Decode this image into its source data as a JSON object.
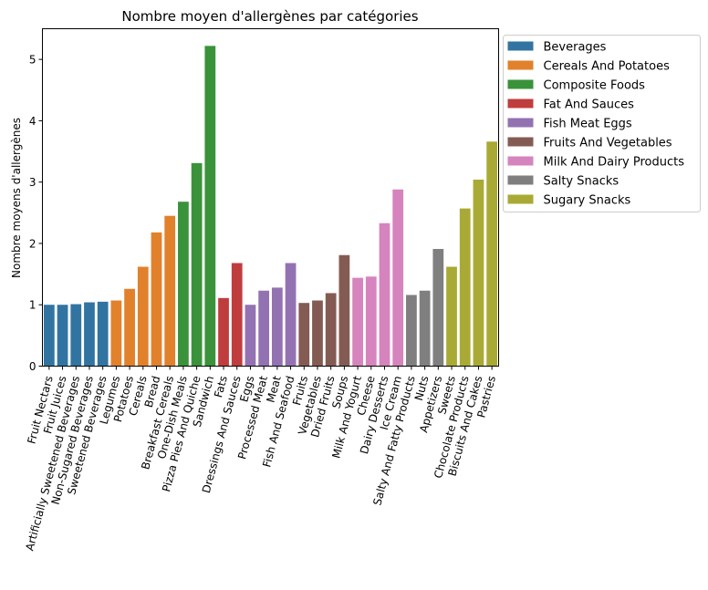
{
  "chart_data": {
    "type": "bar",
    "title": "Nombre moyen d'allergènes par catégories",
    "xlabel": "",
    "ylabel": "Nombre moyens d'allergènes",
    "ylim": [
      0,
      5.5
    ],
    "yticks": [
      0,
      1,
      2,
      3,
      4,
      5
    ],
    "grid": false,
    "legend_position": "outside-right",
    "legend": [
      {
        "name": "Beverages",
        "color": "#3274a1"
      },
      {
        "name": "Cereals And Potatoes",
        "color": "#e1812c"
      },
      {
        "name": "Composite Foods",
        "color": "#3a923a"
      },
      {
        "name": "Fat And Sauces",
        "color": "#c03d3e"
      },
      {
        "name": "Fish Meat Eggs",
        "color": "#9372b2"
      },
      {
        "name": "Fruits And Vegetables",
        "color": "#845b53"
      },
      {
        "name": "Milk And Dairy Products",
        "color": "#d684bd"
      },
      {
        "name": "Salty Snacks",
        "color": "#7f7f7f"
      },
      {
        "name": "Sugary Snacks",
        "color": "#a9aa35"
      }
    ],
    "bars": [
      {
        "category": "Fruit Nectars",
        "value": 1.0,
        "group": 0
      },
      {
        "category": "Fruit Juices",
        "value": 1.0,
        "group": 0
      },
      {
        "category": "Artificially Sweetened Beverages",
        "value": 1.01,
        "group": 0
      },
      {
        "category": "Non-Sugared Beverages",
        "value": 1.04,
        "group": 0
      },
      {
        "category": "Sweetened Beverages",
        "value": 1.05,
        "group": 0
      },
      {
        "category": "Legumes",
        "value": 1.07,
        "group": 1
      },
      {
        "category": "Potatoes",
        "value": 1.26,
        "group": 1
      },
      {
        "category": "Cereals",
        "value": 1.62,
        "group": 1
      },
      {
        "category": "Bread",
        "value": 2.18,
        "group": 1
      },
      {
        "category": "Breakfast Cereals",
        "value": 2.45,
        "group": 1
      },
      {
        "category": "One-Dish Meals",
        "value": 2.68,
        "group": 2
      },
      {
        "category": "Pizza Pies And Quiche",
        "value": 3.31,
        "group": 2
      },
      {
        "category": "Sandwich",
        "value": 5.22,
        "group": 2
      },
      {
        "category": "Fats",
        "value": 1.11,
        "group": 3
      },
      {
        "category": "Dressings And Sauces",
        "value": 1.68,
        "group": 3
      },
      {
        "category": "Eggs",
        "value": 1.0,
        "group": 4
      },
      {
        "category": "Processed Meat",
        "value": 1.23,
        "group": 4
      },
      {
        "category": "Meat",
        "value": 1.28,
        "group": 4
      },
      {
        "category": "Fish And Seafood",
        "value": 1.68,
        "group": 4
      },
      {
        "category": "Fruits",
        "value": 1.03,
        "group": 5
      },
      {
        "category": "Vegetables",
        "value": 1.07,
        "group": 5
      },
      {
        "category": "Dried Fruits",
        "value": 1.19,
        "group": 5
      },
      {
        "category": "Soups",
        "value": 1.81,
        "group": 5
      },
      {
        "category": "Milk And Yogurt",
        "value": 1.44,
        "group": 6
      },
      {
        "category": "Cheese",
        "value": 1.46,
        "group": 6
      },
      {
        "category": "Dairy Desserts",
        "value": 2.33,
        "group": 6
      },
      {
        "category": "Ice Cream",
        "value": 2.88,
        "group": 6
      },
      {
        "category": "Salty And Fatty Products",
        "value": 1.16,
        "group": 7
      },
      {
        "category": "Nuts",
        "value": 1.23,
        "group": 7
      },
      {
        "category": "Appetizers",
        "value": 1.91,
        "group": 7
      },
      {
        "category": "Sweets",
        "value": 1.62,
        "group": 8
      },
      {
        "category": "Chocolate Products",
        "value": 2.57,
        "group": 8
      },
      {
        "category": "Biscuits And Cakes",
        "value": 3.04,
        "group": 8
      },
      {
        "category": "Pastries",
        "value": 3.66,
        "group": 8
      }
    ]
  }
}
